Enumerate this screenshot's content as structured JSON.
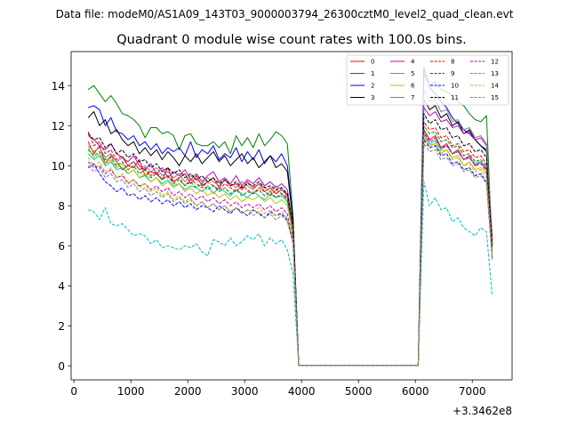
{
  "chart_data": {
    "type": "line",
    "supertitle": "Data file: modeM0/AS1A09_143T03_9000003794_26300cztM0_level2_quad_clean.evt",
    "title": "Quadrant 0 module wise count rates with 100.0s bins.",
    "xlabel": "",
    "ylabel": "",
    "x_offset_label": "+3.3462e8",
    "xlim": [
      -50,
      7700
    ],
    "ylim": [
      -0.7,
      15.7
    ],
    "xticks": [
      0,
      1000,
      2000,
      3000,
      4000,
      5000,
      6000,
      7000
    ],
    "yticks": [
      0,
      2,
      4,
      6,
      8,
      10,
      12,
      14
    ],
    "legend_position": "top-right",
    "legend_columns": 4,
    "x_segments": {
      "first": {
        "start": 250,
        "end": 3750,
        "step": 100
      },
      "gap": [
        3850,
        3950,
        6050
      ],
      "second": {
        "start": 6150,
        "end": 7350,
        "step": 100
      }
    },
    "series": [
      {
        "name": "0",
        "color": "#ff0000",
        "dash": "solid",
        "first": [
          11.2,
          10.6,
          11.0,
          10.1,
          10.5,
          10.2,
          9.8,
          10.0,
          9.9,
          10.3,
          9.5,
          9.7,
          9.6,
          9.3,
          9.9,
          9.2,
          9.4,
          9.6,
          9.1,
          9.5,
          9.0,
          9.2,
          9.4,
          8.9,
          9.3,
          9.0,
          9.1,
          8.8,
          9.2,
          8.9,
          9.1,
          8.7,
          8.9,
          8.6,
          8.8,
          8.5
        ],
        "gap": [
          7.0,
          0.02,
          0.02
        ],
        "second": [
          11.8,
          11.3,
          11.5,
          10.9,
          11.1,
          10.6,
          10.8,
          10.3,
          10.5,
          10.0,
          10.2,
          9.8,
          6.5
        ]
      },
      {
        "name": "1",
        "color": "#008000",
        "dash": "solid",
        "first": [
          13.8,
          14.0,
          13.6,
          13.2,
          13.5,
          13.1,
          12.6,
          12.5,
          12.3,
          12.0,
          11.4,
          11.9,
          11.9,
          11.6,
          11.7,
          11.5,
          10.8,
          11.5,
          11.6,
          11.1,
          11.0,
          11.0,
          11.2,
          10.9,
          11.2,
          10.6,
          11.5,
          11.0,
          11.4,
          10.9,
          11.6,
          11.0,
          11.3,
          11.7,
          11.5,
          11.1
        ],
        "gap": [
          7.5,
          0.02,
          0.02
        ],
        "second": [
          14.6,
          14.0,
          14.2,
          13.8,
          13.7,
          13.5,
          13.2,
          13.0,
          12.6,
          12.3,
          12.2,
          12.5,
          5.8
        ]
      },
      {
        "name": "2",
        "color": "#0000ff",
        "dash": "solid",
        "first": [
          12.9,
          13.0,
          12.8,
          12.0,
          12.4,
          11.7,
          11.6,
          11.3,
          11.5,
          11.0,
          11.2,
          10.8,
          11.1,
          10.6,
          10.9,
          10.7,
          10.9,
          10.5,
          11.2,
          10.4,
          10.8,
          10.6,
          11.0,
          10.3,
          10.6,
          10.4,
          10.9,
          10.2,
          10.7,
          10.3,
          10.8,
          10.1,
          10.5,
          10.2,
          10.6,
          10.0
        ],
        "gap": [
          7.3,
          0.02,
          0.02
        ],
        "second": [
          14.9,
          13.9,
          13.6,
          13.2,
          12.9,
          12.4,
          12.1,
          11.8,
          11.6,
          11.3,
          11.0,
          10.7,
          6.0
        ]
      },
      {
        "name": "3",
        "color": "#000000",
        "dash": "solid",
        "first": [
          12.4,
          12.7,
          12.0,
          12.3,
          11.6,
          11.8,
          11.3,
          11.0,
          11.2,
          10.6,
          10.9,
          10.5,
          10.8,
          10.3,
          10.7,
          10.4,
          10.0,
          10.5,
          10.2,
          10.6,
          10.1,
          10.4,
          10.7,
          10.2,
          10.5,
          10.0,
          10.3,
          10.6,
          10.1,
          10.4,
          9.9,
          10.2,
          10.5,
          9.9,
          10.1,
          9.7
        ],
        "gap": [
          7.2,
          0.02,
          0.02
        ],
        "second": [
          13.3,
          12.8,
          13.0,
          12.4,
          12.6,
          12.0,
          12.2,
          11.6,
          11.8,
          11.3,
          11.0,
          10.8,
          6.2
        ]
      },
      {
        "name": "4",
        "color": "#bf00bf",
        "dash": "solid",
        "first": [
          11.5,
          11.3,
          11.0,
          10.8,
          11.1,
          10.6,
          10.4,
          10.2,
          10.5,
          10.0,
          9.8,
          10.1,
          9.6,
          9.9,
          9.4,
          9.7,
          9.5,
          9.8,
          9.3,
          9.6,
          9.2,
          9.5,
          9.7,
          9.2,
          9.4,
          9.1,
          9.5,
          9.0,
          9.3,
          9.1,
          9.4,
          9.0,
          9.2,
          8.9,
          9.1,
          8.8
        ],
        "gap": [
          7.0,
          0.02,
          0.02
        ],
        "second": [
          12.9,
          12.5,
          12.7,
          12.2,
          12.3,
          11.9,
          12.0,
          11.6,
          11.7,
          11.3,
          11.4,
          11.0,
          6.3
        ]
      },
      {
        "name": "5",
        "color": "#00bfbf",
        "dash": "solid",
        "first": [
          10.6,
          10.3,
          10.5,
          10.0,
          10.2,
          9.8,
          9.9,
          9.6,
          9.8,
          9.4,
          9.5,
          9.2,
          9.4,
          9.1,
          9.3,
          9.0,
          9.1,
          8.8,
          9.0,
          8.9,
          8.7,
          9.0,
          8.6,
          8.9,
          8.7,
          8.5,
          8.8,
          8.6,
          8.4,
          8.7,
          8.5,
          8.3,
          8.6,
          8.4,
          8.5,
          8.2
        ],
        "gap": [
          6.7,
          0.02,
          0.02
        ],
        "second": [
          11.6,
          11.1,
          11.3,
          10.8,
          11.0,
          10.6,
          10.7,
          10.3,
          10.4,
          10.1,
          10.2,
          9.9,
          5.9
        ]
      },
      {
        "name": "6",
        "color": "#bfbf00",
        "dash": "solid",
        "first": [
          10.9,
          10.4,
          10.6,
          10.1,
          10.3,
          9.9,
          10.1,
          9.6,
          9.8,
          9.4,
          9.6,
          9.2,
          9.4,
          9.0,
          9.2,
          8.9,
          9.1,
          8.7,
          8.9,
          8.6,
          8.8,
          8.5,
          8.7,
          8.4,
          8.6,
          8.3,
          8.5,
          8.2,
          8.4,
          8.3,
          8.5,
          8.2,
          8.4,
          8.1,
          8.3,
          8.0
        ],
        "gap": [
          6.6,
          0.02,
          0.02
        ],
        "second": [
          11.4,
          11.0,
          11.1,
          10.6,
          10.8,
          10.4,
          10.5,
          10.0,
          10.2,
          9.8,
          9.9,
          9.6,
          5.6
        ]
      },
      {
        "name": "7",
        "color": "#808080",
        "dash": "solid",
        "first": [
          11.0,
          10.7,
          10.9,
          10.4,
          10.6,
          10.2,
          10.4,
          10.0,
          10.2,
          9.8,
          10.0,
          9.7,
          9.9,
          9.5,
          9.7,
          9.4,
          9.6,
          9.2,
          9.5,
          9.3,
          9.1,
          9.4,
          9.2,
          9.0,
          9.3,
          9.1,
          8.9,
          9.2,
          9.0,
          8.8,
          9.1,
          8.9,
          8.7,
          9.0,
          8.8,
          8.6
        ],
        "gap": [
          6.9,
          0.02,
          0.02
        ],
        "second": [
          13.8,
          13.2,
          13.3,
          12.7,
          12.8,
          12.2,
          12.3,
          11.8,
          11.9,
          11.4,
          11.5,
          11.1,
          6.6
        ]
      },
      {
        "name": "8",
        "color": "#ff0000",
        "dash": "dashed",
        "first": [
          11.7,
          11.0,
          11.2,
          10.6,
          10.8,
          10.3,
          10.5,
          10.0,
          10.2,
          9.8,
          9.9,
          9.5,
          9.7,
          9.3,
          9.5,
          9.2,
          9.4,
          9.0,
          9.3,
          9.1,
          8.9,
          9.2,
          9.0,
          8.8,
          9.1,
          8.9,
          8.7,
          9.0,
          8.8,
          8.6,
          8.9,
          8.7,
          8.5,
          8.8,
          8.6,
          8.4
        ],
        "gap": [
          6.8,
          0.02,
          0.02
        ],
        "second": [
          12.2,
          11.8,
          11.9,
          11.4,
          11.5,
          11.0,
          11.1,
          10.7,
          10.8,
          10.4,
          10.5,
          10.1,
          6.1
        ]
      },
      {
        "name": "9",
        "color": "#008000",
        "dash": "dashed",
        "first": [
          10.8,
          10.5,
          10.7,
          10.3,
          10.4,
          10.0,
          10.2,
          9.8,
          10.0,
          9.6,
          9.8,
          9.4,
          9.6,
          9.3,
          9.5,
          9.1,
          9.3,
          9.0,
          9.2,
          8.9,
          9.1,
          8.8,
          9.0,
          8.7,
          8.9,
          8.6,
          8.8,
          8.5,
          8.7,
          8.6,
          8.8,
          8.5,
          8.7,
          8.4,
          8.6,
          8.3
        ],
        "gap": [
          6.8,
          0.02,
          0.02
        ],
        "second": [
          12.0,
          11.6,
          11.7,
          11.2,
          11.3,
          10.9,
          11.0,
          10.5,
          10.6,
          10.2,
          10.3,
          10.0,
          5.9
        ]
      },
      {
        "name": "10",
        "color": "#0000ff",
        "dash": "dashed",
        "first": [
          9.9,
          10.1,
          9.6,
          9.2,
          9.0,
          8.7,
          8.9,
          8.5,
          8.6,
          8.3,
          8.5,
          8.2,
          8.4,
          8.1,
          8.3,
          8.0,
          8.2,
          7.9,
          8.1,
          7.8,
          8.0,
          7.9,
          7.7,
          8.0,
          7.8,
          7.6,
          7.9,
          7.7,
          7.5,
          7.8,
          7.6,
          7.4,
          7.7,
          7.5,
          7.6,
          7.3
        ],
        "gap": [
          6.2,
          0.02,
          0.02
        ],
        "second": [
          11.3,
          10.9,
          11.0,
          10.5,
          10.6,
          10.1,
          10.2,
          9.8,
          9.9,
          9.5,
          9.6,
          9.2,
          5.4
        ]
      },
      {
        "name": "11",
        "color": "#000000",
        "dash": "dashed",
        "first": [
          11.6,
          11.3,
          11.4,
          10.9,
          11.1,
          10.6,
          10.8,
          10.4,
          10.6,
          10.2,
          10.3,
          9.9,
          10.1,
          9.7,
          9.9,
          9.6,
          9.8,
          9.4,
          9.6,
          9.3,
          9.5,
          9.2,
          9.4,
          9.1,
          9.3,
          9.0,
          9.2,
          8.9,
          9.1,
          9.0,
          9.2,
          8.9,
          9.0,
          8.8,
          8.9,
          8.6
        ],
        "gap": [
          7.0,
          0.02,
          0.02
        ],
        "second": [
          12.6,
          12.1,
          12.3,
          11.8,
          11.9,
          11.4,
          11.5,
          11.0,
          11.1,
          10.7,
          10.8,
          10.4,
          6.0
        ]
      },
      {
        "name": "12",
        "color": "#bf00bf",
        "dash": "dashed",
        "first": [
          10.2,
          9.9,
          10.0,
          9.6,
          9.8,
          9.4,
          9.5,
          9.1,
          9.3,
          9.0,
          9.1,
          8.8,
          9.0,
          8.7,
          8.9,
          8.5,
          8.7,
          8.4,
          8.6,
          8.3,
          8.5,
          8.2,
          8.4,
          8.1,
          8.3,
          8.0,
          8.2,
          7.9,
          8.1,
          7.9,
          8.1,
          7.8,
          8.0,
          7.7,
          7.9,
          7.6
        ],
        "gap": [
          6.4,
          0.02,
          0.02
        ],
        "second": [
          11.7,
          11.2,
          11.4,
          10.9,
          11.0,
          10.6,
          10.7,
          10.3,
          10.4,
          10.0,
          10.1,
          9.7,
          5.7
        ]
      },
      {
        "name": "13",
        "color": "#00bfbf",
        "dash": "dashed",
        "first": [
          7.8,
          7.7,
          7.3,
          7.9,
          7.1,
          7.0,
          7.1,
          6.8,
          6.5,
          6.6,
          6.5,
          6.1,
          6.3,
          5.9,
          6.0,
          5.9,
          5.8,
          6.0,
          5.9,
          6.1,
          5.7,
          5.5,
          6.3,
          6.2,
          6.0,
          6.4,
          6.0,
          6.2,
          6.5,
          6.3,
          6.6,
          6.0,
          6.4,
          6.1,
          6.3,
          5.8
        ],
        "gap": [
          4.6,
          0.02,
          0.02
        ],
        "second": [
          9.2,
          8.0,
          8.4,
          7.8,
          7.9,
          7.2,
          7.4,
          6.9,
          6.7,
          6.5,
          6.9,
          6.7,
          3.5
        ]
      },
      {
        "name": "14",
        "color": "#bfbf00",
        "dash": "dashed",
        "first": [
          10.4,
          10.0,
          10.2,
          9.7,
          9.9,
          9.4,
          9.6,
          9.2,
          9.3,
          8.9,
          9.1,
          8.7,
          8.9,
          8.5,
          8.7,
          8.3,
          8.5,
          8.2,
          8.4,
          8.0,
          8.2,
          7.9,
          8.1,
          7.8,
          8.0,
          7.7,
          7.9,
          7.6,
          7.8,
          7.7,
          7.9,
          7.6,
          7.8,
          7.5,
          7.7,
          7.4
        ],
        "gap": [
          6.3,
          0.02,
          0.02
        ],
        "second": [
          11.5,
          11.0,
          11.2,
          10.7,
          10.8,
          10.3,
          10.4,
          10.0,
          10.1,
          9.7,
          9.8,
          9.4,
          5.5
        ]
      },
      {
        "name": "15",
        "color": "#808080",
        "dash": "dashed",
        "first": [
          10.0,
          9.7,
          9.9,
          9.4,
          9.6,
          9.2,
          9.3,
          8.9,
          9.1,
          8.7,
          8.9,
          8.5,
          8.7,
          8.4,
          8.6,
          8.2,
          8.4,
          8.1,
          8.3,
          8.0,
          8.2,
          7.9,
          8.1,
          7.8,
          8.0,
          7.7,
          7.9,
          7.6,
          7.8,
          7.5,
          7.7,
          7.4,
          7.6,
          7.3,
          7.5,
          7.2
        ],
        "gap": [
          6.1,
          0.02,
          0.02
        ],
        "second": [
          11.1,
          10.7,
          10.8,
          10.3,
          10.4,
          10.0,
          10.1,
          9.7,
          9.8,
          9.4,
          9.5,
          9.1,
          5.3
        ]
      }
    ]
  }
}
